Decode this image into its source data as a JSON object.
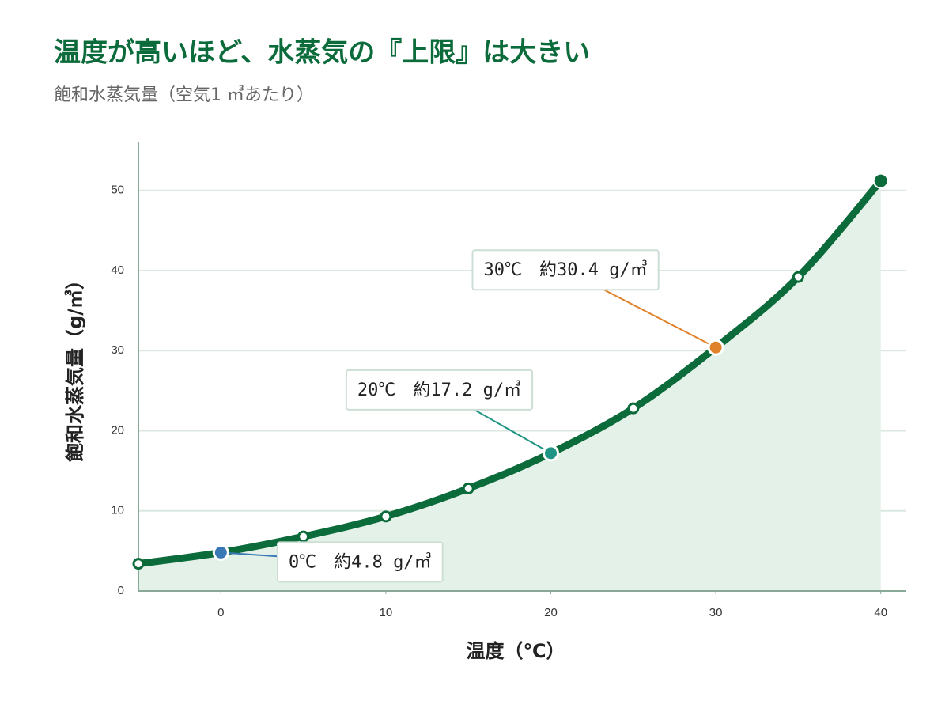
{
  "chart_data": {
    "type": "line",
    "title": "温度が高いほど、水蒸気の『上限』は大きい",
    "subtitle": "飽和水蒸気量（空気1 ㎥あたり）",
    "x_label": "温度（℃）",
    "y_label": "飽和水蒸気量（g/㎥）",
    "x": [
      -5,
      0,
      5,
      10,
      15,
      20,
      25,
      30,
      35,
      40
    ],
    "values": [
      3.4,
      4.8,
      6.8,
      9.3,
      12.8,
      17.2,
      22.8,
      30.4,
      39.2,
      51.2
    ],
    "color": "#0b6b3a",
    "fill_color": "#e3f1e8",
    "xlim": [
      -5,
      41.5
    ],
    "ylim": [
      0,
      56
    ],
    "xticks": [
      0,
      10,
      20,
      30,
      40
    ],
    "yticks": [
      0,
      10,
      20,
      30,
      40,
      50
    ],
    "grid": true,
    "annotations": [
      {
        "text": "0℃　約4.8 g/㎥",
        "x": 0,
        "y": 4.8,
        "color": "#3a78b5"
      },
      {
        "text": "20℃　約17.2 g/㎥",
        "x": 20,
        "y": 17.2,
        "color": "#1f9484"
      },
      {
        "text": "30℃　約30.4 g/㎥",
        "x": 30,
        "y": 30.4,
        "color": "#e0822a"
      }
    ]
  }
}
